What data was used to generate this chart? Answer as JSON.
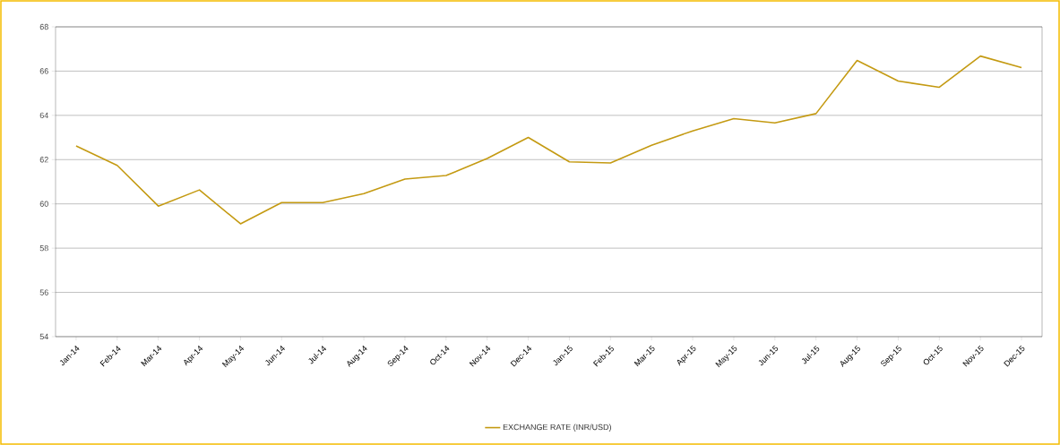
{
  "chart_data": {
    "type": "line",
    "categories": [
      "Jan-14",
      "Feb-14",
      "Mar-14",
      "Apr-14",
      "May-14",
      "Jun-14",
      "Jul-14",
      "Aug-14",
      "Sep-14",
      "Oct-14",
      "Nov-14",
      "Dec-14",
      "Jan-15",
      "Feb-15",
      "Mar-15",
      "Apr-15",
      "May-15",
      "Jun-15",
      "Jul-15",
      "Aug-15",
      "Sep-15",
      "Oct-15",
      "Nov-15",
      "Dec-15"
    ],
    "series": [
      {
        "name": "EXCHANGE RATE (INR/USD)",
        "color": "#c49a12",
        "values": [
          62.62,
          61.74,
          59.9,
          60.63,
          59.1,
          60.06,
          60.06,
          60.46,
          61.12,
          61.28,
          62.05,
          63.0,
          61.9,
          61.85,
          62.65,
          63.3,
          63.85,
          63.66,
          64.08,
          66.48,
          65.55,
          65.27,
          66.68,
          66.16
        ]
      }
    ],
    "ylim": [
      54,
      68
    ],
    "yticks": [
      54,
      56,
      58,
      60,
      62,
      64,
      66,
      68
    ],
    "grid": "y",
    "legend": "bottom",
    "marker": "none",
    "line_style": "solid"
  }
}
